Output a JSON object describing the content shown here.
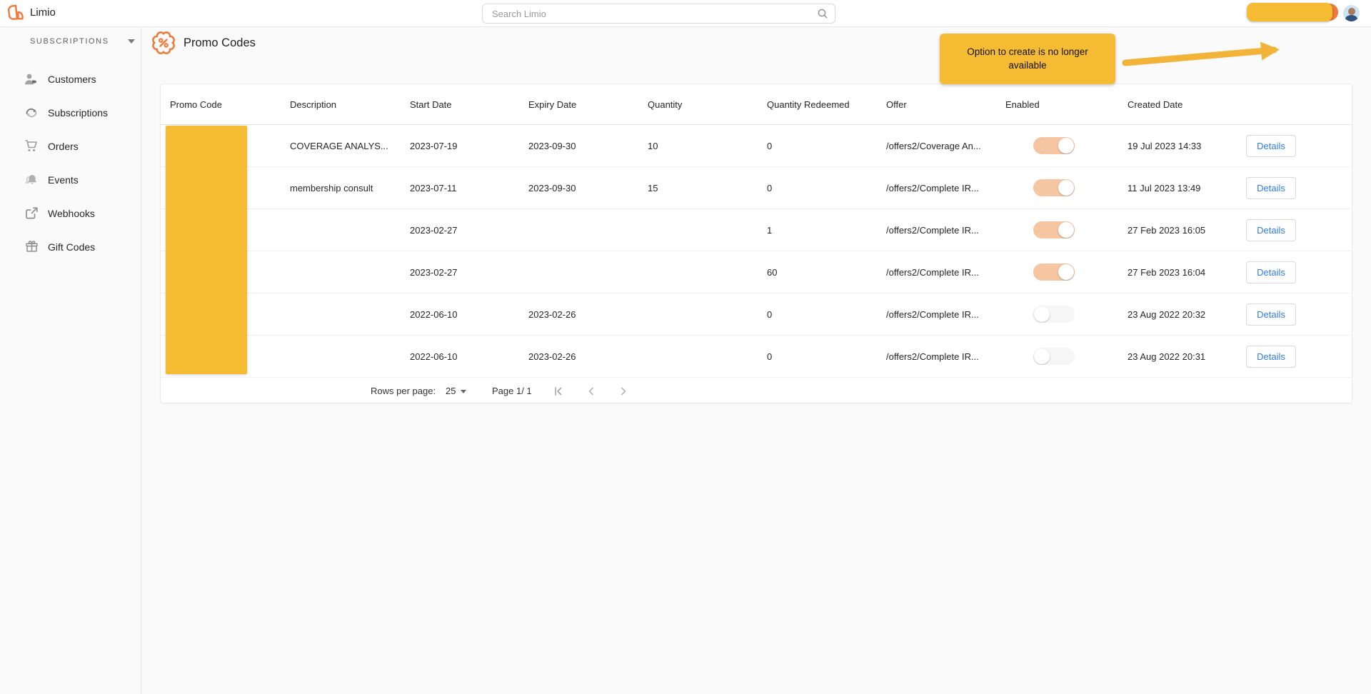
{
  "colors": {
    "brand_orange": "#F0793A",
    "redaction_yellow": "#F5BB33",
    "toggle_on_peach": "#F6C6A2",
    "details_blue": "#2E7CF0"
  },
  "topbar": {
    "logo_text": "Limio",
    "search_placeholder": "Search Limio"
  },
  "sidebar": {
    "section_label": "SUBSCRIPTIONS",
    "items": [
      {
        "label": "Customers"
      },
      {
        "label": "Subscriptions"
      },
      {
        "label": "Orders"
      },
      {
        "label": "Events"
      },
      {
        "label": "Webhooks"
      },
      {
        "label": "Gift Codes"
      }
    ]
  },
  "page": {
    "title": "Promo Codes"
  },
  "annotation": {
    "text": "Option to create is no longer available"
  },
  "table": {
    "columns": [
      "Promo Code",
      "Description",
      "Start Date",
      "Expiry Date",
      "Quantity",
      "Quantity Redeemed",
      "Offer",
      "Enabled",
      "Created Date"
    ],
    "details_label": "Details",
    "rows": [
      {
        "promo_code": "",
        "description": "COVERAGE ANALYS...",
        "start_date": "2023-07-19",
        "expiry_date": "2023-09-30",
        "quantity": "10",
        "quantity_redeemed": "0",
        "offer": "/offers2/Coverage An...",
        "enabled": true,
        "created_date": "19 Jul 2023 14:33"
      },
      {
        "promo_code": "",
        "description": "membership consult",
        "start_date": "2023-07-11",
        "expiry_date": "2023-09-30",
        "quantity": "15",
        "quantity_redeemed": "0",
        "offer": "/offers2/Complete IR...",
        "enabled": true,
        "created_date": "11 Jul 2023 13:49"
      },
      {
        "promo_code": "",
        "description": "",
        "start_date": "2023-02-27",
        "expiry_date": "",
        "quantity": "",
        "quantity_redeemed": "1",
        "offer": "/offers2/Complete IR...",
        "enabled": true,
        "created_date": "27 Feb 2023 16:05"
      },
      {
        "promo_code": "",
        "description": "",
        "start_date": "2023-02-27",
        "expiry_date": "",
        "quantity": "",
        "quantity_redeemed": "60",
        "offer": "/offers2/Complete IR...",
        "enabled": true,
        "created_date": "27 Feb 2023 16:04"
      },
      {
        "promo_code": "",
        "description": "",
        "start_date": "2022-06-10",
        "expiry_date": "2023-02-26",
        "quantity": "",
        "quantity_redeemed": "0",
        "offer": "/offers2/Complete IR...",
        "enabled": false,
        "created_date": "23 Aug 2022 20:32"
      },
      {
        "promo_code": "",
        "description": "",
        "start_date": "2022-06-10",
        "expiry_date": "2023-02-26",
        "quantity": "",
        "quantity_redeemed": "0",
        "offer": "/offers2/Complete IR...",
        "enabled": false,
        "created_date": "23 Aug 2022 20:31"
      }
    ]
  },
  "pagination": {
    "rows_per_page_label": "Rows per page:",
    "rows_per_page_value": "25",
    "page_label": "Page 1/ 1"
  }
}
